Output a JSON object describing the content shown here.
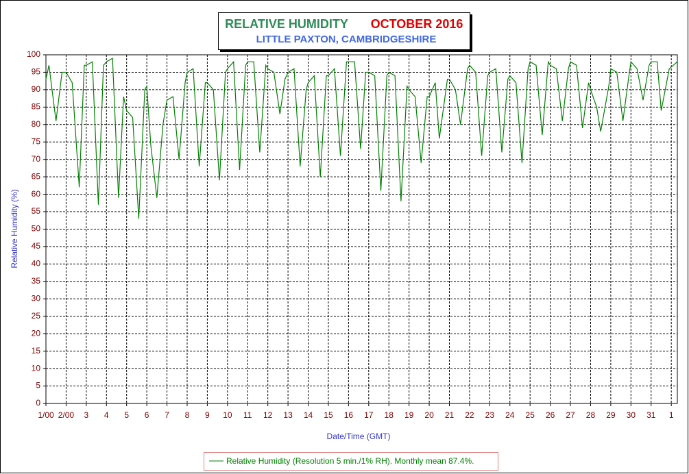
{
  "chart_data": {
    "type": "line",
    "title": "RELATIVE HUMIDITY",
    "title_period": "OCTOBER 2016",
    "subtitle": "LITTLE PAXTON, CAMBRIDGESHIRE",
    "y_label": "Relative Humidity (%)",
    "x_label": "Date/Time (GMT)",
    "x": [
      1.0,
      1.15,
      1.5,
      1.8,
      2.0,
      2.3,
      2.65,
      2.9,
      3.0,
      3.3,
      3.6,
      3.85,
      4.0,
      4.3,
      4.6,
      4.85,
      5.0,
      5.3,
      5.6,
      5.9,
      6.0,
      6.2,
      6.5,
      6.8,
      7.0,
      7.3,
      7.6,
      7.9,
      8.0,
      8.3,
      8.6,
      8.9,
      9.0,
      9.3,
      9.6,
      9.9,
      10.0,
      10.3,
      10.6,
      10.9,
      11.0,
      11.3,
      11.6,
      11.9,
      12.0,
      12.3,
      12.6,
      12.85,
      13.0,
      13.3,
      13.6,
      13.9,
      14.0,
      14.3,
      14.6,
      14.9,
      15.0,
      15.3,
      15.6,
      15.9,
      16.0,
      16.3,
      16.6,
      16.85,
      17.0,
      17.3,
      17.6,
      17.9,
      18.0,
      18.3,
      18.6,
      18.9,
      19.0,
      19.3,
      19.6,
      19.9,
      20.0,
      20.3,
      20.5,
      20.9,
      21.0,
      21.3,
      21.55,
      21.9,
      22.0,
      22.3,
      22.6,
      22.9,
      23.0,
      23.3,
      23.6,
      23.9,
      24.0,
      24.3,
      24.6,
      24.9,
      25.0,
      25.3,
      25.6,
      25.9,
      26.0,
      26.3,
      26.6,
      26.9,
      27.0,
      27.3,
      27.6,
      27.9,
      28.0,
      28.3,
      28.5,
      28.9,
      29.0,
      29.3,
      29.6,
      29.9,
      30.0,
      30.3,
      30.6,
      30.9,
      31.0,
      31.3,
      31.5,
      31.9,
      32.3
    ],
    "series": [
      {
        "name": "Relative Humidity (Resolution 5 min./1% RH). Monthly mean 87.4%.",
        "color": "#008000",
        "values": [
          93,
          97,
          81,
          95,
          95,
          92,
          62,
          97,
          97,
          98,
          57,
          97,
          98,
          99,
          59,
          88,
          84,
          82,
          53,
          90,
          91,
          74,
          59,
          80,
          87,
          88,
          70,
          92,
          95,
          96,
          68,
          92,
          92,
          90,
          64,
          95,
          96,
          98,
          67,
          97,
          98,
          98,
          72,
          97,
          96,
          95,
          83,
          93,
          95,
          96,
          68,
          90,
          92,
          94,
          65,
          94,
          94,
          96,
          71,
          98,
          98,
          98,
          73,
          95,
          95,
          94,
          61,
          94,
          95,
          94,
          58,
          91,
          90,
          88,
          69,
          88,
          88,
          92,
          76,
          93,
          93,
          90,
          80,
          96,
          97,
          95,
          71,
          94,
          95,
          96,
          72,
          93,
          94,
          92,
          69,
          96,
          98,
          97,
          77,
          98,
          97,
          96,
          81,
          96,
          98,
          97,
          79,
          92,
          90,
          85,
          78,
          91,
          96,
          95,
          81,
          94,
          98,
          96,
          87,
          97,
          98,
          98,
          84,
          96,
          98
        ]
      }
    ],
    "xlim": [
      1,
      32.3
    ],
    "xticks": [
      {
        "value": 1,
        "label": "1/00"
      },
      {
        "value": 2,
        "label": "2/00"
      },
      3,
      4,
      5,
      6,
      7,
      8,
      9,
      10,
      11,
      12,
      13,
      14,
      15,
      16,
      17,
      18,
      19,
      20,
      21,
      22,
      23,
      24,
      25,
      26,
      27,
      28,
      29,
      30,
      31,
      {
        "value": 32,
        "label": "1"
      }
    ],
    "ylim": [
      0,
      100
    ],
    "yticks": [
      0,
      5,
      10,
      15,
      20,
      25,
      30,
      35,
      40,
      45,
      50,
      55,
      60,
      65,
      70,
      75,
      80,
      85,
      90,
      95,
      100
    ],
    "grid": true
  }
}
